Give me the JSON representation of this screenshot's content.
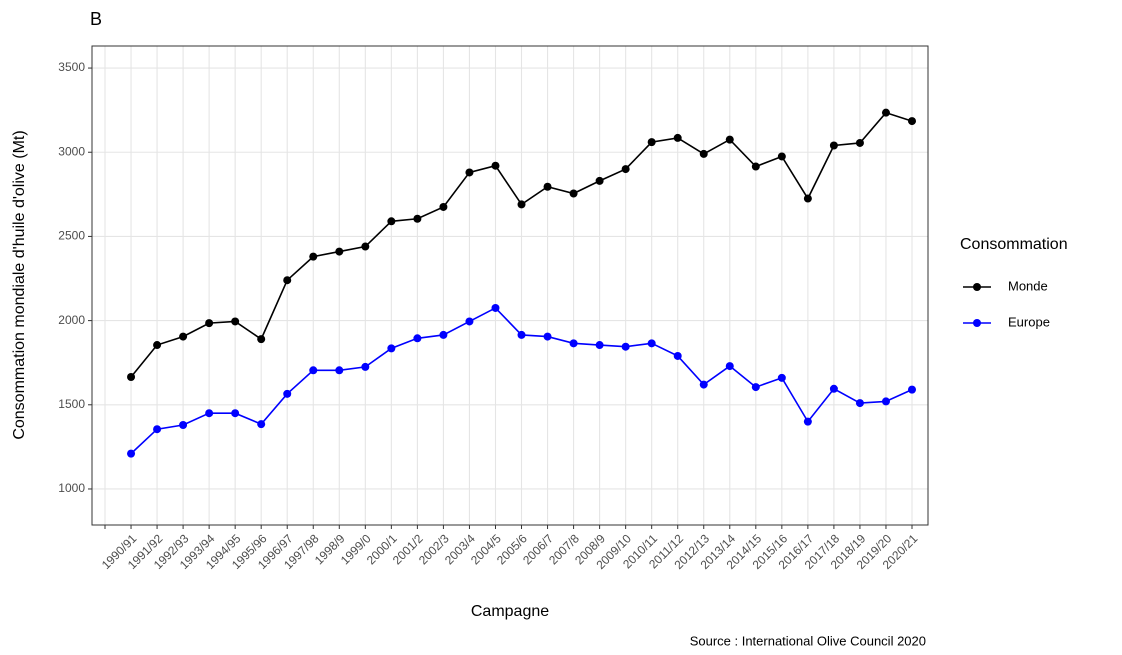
{
  "chart_data": {
    "type": "line",
    "title": "B",
    "x_label": "Campagne",
    "y_label": "Consommation mondiale d'huile d'olive (Mt)",
    "source": "Source : International Olive Council 2020",
    "legend_title": "Consommation",
    "legend_position": "right",
    "grid": true,
    "categories": [
      null,
      "1990/91",
      "1991/92",
      "1992/93",
      "1993/94",
      "1994/95",
      "1995/96",
      "1996/97",
      "1997/98",
      "1998/9",
      "1999/0",
      "2000/1",
      "2001/2",
      "2002/3",
      "2003/4",
      "2004/5",
      "2005/6",
      "2006/7",
      "2007/8",
      "2008/9",
      "2009/10",
      "2010/11",
      "2011/12",
      "2012/13",
      "2013/14",
      "2014/15",
      "2015/16",
      "2016/17",
      "2017/18",
      "2018/19",
      "2019/20",
      "2020/21"
    ],
    "series": [
      {
        "name": "Monde",
        "color": "#000000",
        "values": [
          null,
          1665,
          1855,
          1905,
          1985,
          1995,
          1890,
          2240,
          2380,
          2410,
          2440,
          2590,
          2605,
          2675,
          2880,
          2920,
          2690,
          2795,
          2755,
          2830,
          2900,
          3060,
          3085,
          2990,
          3075,
          2915,
          2975,
          2725,
          3040,
          3055,
          3235,
          3185
        ]
      },
      {
        "name": "Europe",
        "color": "#0000ff",
        "values": [
          null,
          1210,
          1355,
          1380,
          1450,
          1450,
          1385,
          1565,
          1705,
          1705,
          1725,
          1835,
          1895,
          1915,
          1995,
          2075,
          1915,
          1905,
          1865,
          1855,
          1845,
          1865,
          1790,
          1620,
          1730,
          1605,
          1660,
          1400,
          1595,
          1510,
          1520,
          1590
        ]
      }
    ],
    "ylim": [
      786,
      3631
    ],
    "yticks": [
      1000,
      1500,
      2000,
      2500,
      3000,
      3500
    ]
  }
}
